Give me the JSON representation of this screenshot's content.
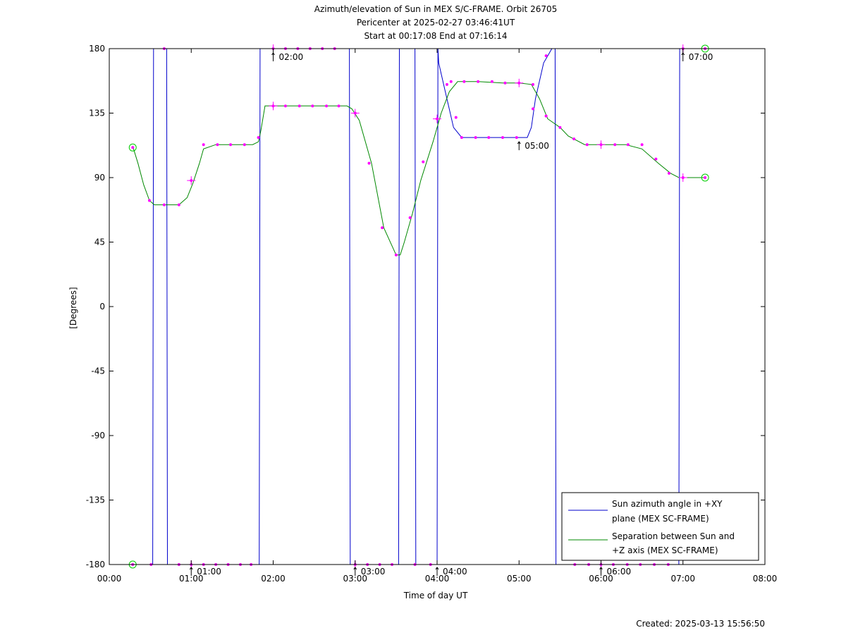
{
  "chart_data": {
    "type": "line",
    "title": "Azimuth/elevation of Sun in MEX S/C-FRAME.  Orbit 26705",
    "subtitle1": "Pericenter at 2025-02-27 03:46:41UT",
    "subtitle2": "Start at 00:17:08 End at 07:16:14",
    "xlabel": "Time of day UT",
    "ylabel": "[Degrees]",
    "xlim": [
      0,
      8
    ],
    "ylim": [
      -180,
      180
    ],
    "x_ticks": [
      0,
      1,
      2,
      3,
      4,
      5,
      6,
      7,
      8
    ],
    "x_tick_labels": [
      "00:00",
      "01:00",
      "02:00",
      "03:00",
      "04:00",
      "05:00",
      "06:00",
      "07:00",
      "08:00"
    ],
    "y_ticks": [
      180,
      135,
      90,
      45,
      0,
      -45,
      -90,
      -135,
      -180
    ],
    "y_tick_labels": [
      "180",
      "135",
      "90",
      "45",
      "0",
      "-45",
      "-90",
      "-135",
      "-180"
    ],
    "grid": false,
    "legend_position": "bottom-right",
    "created": "Created: 2025-03-13 15:56:50",
    "hour_annotations": [
      {
        "label": "01:00",
        "x": 1.0,
        "y": -180
      },
      {
        "label": "02:00",
        "x": 2.0,
        "y": 180
      },
      {
        "label": "03:00",
        "x": 3.0,
        "y": -180
      },
      {
        "label": "04:00",
        "x": 4.0,
        "y": -180
      },
      {
        "label": "05:00",
        "x": 5.0,
        "y": 118
      },
      {
        "label": "06:00",
        "x": 6.0,
        "y": -180
      },
      {
        "label": "07:00",
        "x": 7.0,
        "y": 180
      }
    ],
    "series": [
      {
        "name": "Sun azimuth angle in +XY plane (MEX SC-FRAME)",
        "legend_lines": [
          "Sun azimuth angle in +XY",
          "plane (MEX SC-FRAME)"
        ],
        "color": "#0000cc",
        "x": [
          0.286,
          0.4,
          0.53,
          0.54,
          0.7,
          0.71,
          0.85,
          1.0,
          1.3,
          1.6,
          1.83,
          1.84,
          2.0,
          2.3,
          2.6,
          2.93,
          2.94,
          3.0,
          3.3,
          3.53,
          3.54,
          3.73,
          3.74,
          4.0,
          4.01,
          4.02,
          4.1,
          4.2,
          4.3,
          4.5,
          4.7,
          4.9,
          5.0,
          5.1,
          5.15,
          5.2,
          5.3,
          5.4,
          5.44,
          5.45,
          5.6,
          5.8,
          6.0,
          6.3,
          6.6,
          6.9,
          6.95,
          6.96,
          7.0,
          7.27
        ],
        "y": [
          -180,
          -180,
          -180,
          180,
          180,
          -180,
          -180,
          -180,
          -180,
          -180,
          -180,
          180,
          180,
          180,
          180,
          180,
          -180,
          -180,
          -180,
          -180,
          180,
          180,
          -180,
          -180,
          180,
          170,
          150,
          125,
          118,
          118,
          118,
          118,
          118,
          118,
          125,
          145,
          170,
          180,
          180,
          -180,
          -180,
          -180,
          -180,
          -180,
          -180,
          -180,
          -180,
          180,
          180,
          180
        ]
      },
      {
        "name": "Separation between Sun and +Z axis (MEX SC-FRAME)",
        "legend_lines": [
          "Separation between Sun and",
          "+Z axis (MEX SC-FRAME)"
        ],
        "color": "#008800",
        "x": [
          0.286,
          0.35,
          0.42,
          0.49,
          0.55,
          0.7,
          0.85,
          0.95,
          1.02,
          1.1,
          1.15,
          1.3,
          1.6,
          1.75,
          1.82,
          1.85,
          1.9,
          2.3,
          2.6,
          2.9,
          2.96,
          3.05,
          3.2,
          3.35,
          3.5,
          3.55,
          3.6,
          3.7,
          3.8,
          3.95,
          4.05,
          4.15,
          4.25,
          4.5,
          4.8,
          5.0,
          5.15,
          5.25,
          5.35,
          5.5,
          5.6,
          5.8,
          6.0,
          6.3,
          6.5,
          6.7,
          6.85,
          6.95,
          7.27
        ],
        "y": [
          112,
          100,
          85,
          74,
          71,
          71,
          71,
          76,
          86,
          100,
          110,
          113,
          113,
          113,
          115,
          123,
          140,
          140,
          140,
          140,
          138,
          130,
          100,
          55,
          36,
          36,
          45,
          65,
          88,
          115,
          135,
          150,
          157,
          157,
          156,
          156,
          155,
          145,
          131,
          125,
          119,
          113,
          113,
          113,
          110,
          100,
          93,
          90,
          90
        ]
      }
    ],
    "marker_color": "#ff00ff",
    "marker_points": {
      "azimuth": [
        [
          0.286,
          -180
        ],
        [
          0.51,
          -180
        ],
        [
          0.67,
          180
        ],
        [
          0.85,
          -180
        ],
        [
          1.0,
          -180
        ],
        [
          1.15,
          -180
        ],
        [
          1.3,
          -180
        ],
        [
          1.45,
          -180
        ],
        [
          1.6,
          -180
        ],
        [
          1.73,
          -180
        ],
        [
          2.0,
          180
        ],
        [
          2.15,
          180
        ],
        [
          2.3,
          180
        ],
        [
          2.45,
          180
        ],
        [
          2.6,
          180
        ],
        [
          2.75,
          180
        ],
        [
          3.0,
          -180
        ],
        [
          3.15,
          -180
        ],
        [
          3.3,
          -180
        ],
        [
          3.45,
          -180
        ],
        [
          3.73,
          -180
        ],
        [
          3.92,
          -180
        ],
        [
          4.12,
          155
        ],
        [
          4.23,
          132
        ],
        [
          4.3,
          118
        ],
        [
          4.47,
          118
        ],
        [
          4.63,
          118
        ],
        [
          4.8,
          118
        ],
        [
          4.97,
          118
        ],
        [
          5.17,
          138
        ],
        [
          5.33,
          175
        ],
        [
          5.68,
          -180
        ],
        [
          5.85,
          -180
        ],
        [
          6.0,
          -180
        ],
        [
          6.15,
          -180
        ],
        [
          6.32,
          -180
        ],
        [
          6.48,
          -180
        ],
        [
          6.65,
          -180
        ],
        [
          6.82,
          -180
        ],
        [
          7.0,
          180
        ],
        [
          7.27,
          180
        ]
      ],
      "separation": [
        [
          0.286,
          111
        ],
        [
          0.49,
          74
        ],
        [
          0.67,
          71
        ],
        [
          0.85,
          71
        ],
        [
          1.0,
          88
        ],
        [
          1.15,
          113
        ],
        [
          1.32,
          113
        ],
        [
          1.48,
          113
        ],
        [
          1.65,
          113
        ],
        [
          1.82,
          118
        ],
        [
          2.0,
          140
        ],
        [
          2.15,
          140
        ],
        [
          2.32,
          140
        ],
        [
          2.48,
          140
        ],
        [
          2.65,
          140
        ],
        [
          2.8,
          140
        ],
        [
          3.0,
          135
        ],
        [
          3.17,
          100
        ],
        [
          3.33,
          55
        ],
        [
          3.5,
          36
        ],
        [
          3.67,
          62
        ],
        [
          3.83,
          101
        ],
        [
          4.0,
          131
        ],
        [
          4.17,
          157
        ],
        [
          4.33,
          157
        ],
        [
          4.5,
          157
        ],
        [
          4.67,
          157
        ],
        [
          4.83,
          156
        ],
        [
          5.0,
          156
        ],
        [
          5.17,
          155
        ],
        [
          5.33,
          133
        ],
        [
          5.5,
          125
        ],
        [
          5.67,
          117
        ],
        [
          5.83,
          113
        ],
        [
          6.0,
          113
        ],
        [
          6.17,
          113
        ],
        [
          6.33,
          113
        ],
        [
          6.5,
          113
        ],
        [
          6.67,
          103
        ],
        [
          6.83,
          93
        ],
        [
          7.0,
          90
        ],
        [
          7.27,
          90
        ]
      ]
    }
  }
}
